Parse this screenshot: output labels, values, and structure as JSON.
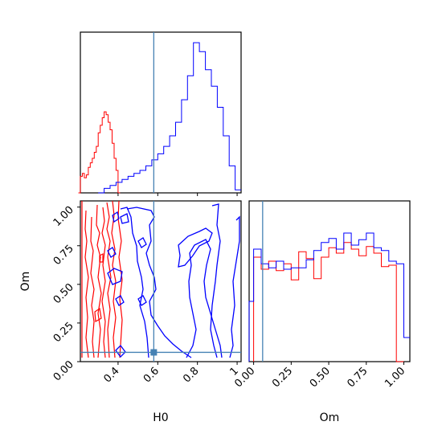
{
  "chart_data": {
    "type": "corner",
    "parameters": [
      "H0",
      "Om"
    ],
    "truth": {
      "H0": 0.58,
      "Om": 0.06
    },
    "colors": {
      "red": "#ff0000",
      "blue": "#0000ff",
      "truth": "#4682b4"
    },
    "panels": [
      {
        "id": "hist-H0",
        "type": "histogram",
        "xlabel": "",
        "xlim": [
          0.21,
          1.02
        ],
        "ylim": [
          0,
          1.07
        ],
        "xticks": [
          0.4,
          0.6,
          0.8,
          1.0
        ],
        "series": [
          {
            "color": "#ff0000",
            "bin_edges": [
              0.2,
              0.21,
              0.22,
              0.23,
              0.24,
              0.25,
              0.26,
              0.27,
              0.28,
              0.29,
              0.3,
              0.31,
              0.32,
              0.33,
              0.34,
              0.35,
              0.36,
              0.37,
              0.38,
              0.39,
              0.4,
              0.41
            ],
            "values": [
              0.0,
              0.11,
              0.13,
              0.1,
              0.12,
              0.17,
              0.2,
              0.23,
              0.27,
              0.31,
              0.4,
              0.45,
              0.5,
              0.54,
              0.52,
              0.47,
              0.42,
              0.33,
              0.23,
              0.15,
              0.0
            ]
          },
          {
            "color": "#0000ff",
            "bin_edges": [
              0.3,
              0.33,
              0.36,
              0.39,
              0.42,
              0.45,
              0.48,
              0.51,
              0.54,
              0.57,
              0.6,
              0.63,
              0.66,
              0.69,
              0.72,
              0.75,
              0.78,
              0.81,
              0.84,
              0.87,
              0.9,
              0.93,
              0.96,
              0.99,
              1.02
            ],
            "values": [
              0.0,
              0.03,
              0.05,
              0.07,
              0.09,
              0.11,
              0.13,
              0.15,
              0.18,
              0.22,
              0.26,
              0.31,
              0.38,
              0.47,
              0.62,
              0.78,
              1.0,
              0.94,
              0.82,
              0.71,
              0.57,
              0.38,
              0.18,
              0.02
            ]
          }
        ]
      },
      {
        "id": "contour-H0-Om",
        "type": "contour",
        "xlabel": "H0",
        "ylabel": "Om",
        "xlim": [
          0.21,
          1.02
        ],
        "ylim": [
          0.0,
          1.04
        ],
        "xticks": [
          0.4,
          0.6,
          0.8,
          1.0
        ],
        "yticks": [
          0.0,
          0.25,
          0.5,
          0.75,
          1.0
        ],
        "yticklabels": [
          "0.00",
          "0.25",
          "0.50",
          "0.75",
          "1.00"
        ]
      },
      {
        "id": "hist-Om",
        "type": "histogram",
        "xlabel": "Om",
        "xlim": [
          -0.03,
          1.04
        ],
        "ylim": [
          0,
          1.2
        ],
        "xticks": [
          0.0,
          0.25,
          0.5,
          0.75,
          1.0
        ],
        "xticklabels": [
          "0.00",
          "0.25",
          "0.50",
          "0.75",
          "1.00"
        ],
        "series": [
          {
            "color": "#ff0000",
            "bin_edges": [
              0.0,
              0.05,
              0.1,
              0.15,
              0.2,
              0.25,
              0.3,
              0.35,
              0.4,
              0.45,
              0.5,
              0.55,
              0.6,
              0.65,
              0.7,
              0.75,
              0.8,
              0.85,
              0.9,
              0.95,
              1.0
            ],
            "values": [
              0.78,
              0.69,
              0.75,
              0.68,
              0.73,
              0.61,
              0.82,
              0.77,
              0.62,
              0.78,
              0.85,
              0.81,
              0.89,
              0.84,
              0.79,
              0.86,
              0.81,
              0.71,
              0.72,
              0.0
            ]
          },
          {
            "color": "#0000ff",
            "bin_edges": [
              -0.03,
              0.0,
              0.05,
              0.1,
              0.15,
              0.2,
              0.25,
              0.3,
              0.35,
              0.4,
              0.45,
              0.5,
              0.55,
              0.6,
              0.65,
              0.7,
              0.75,
              0.8,
              0.85,
              0.9,
              0.95,
              1.0,
              1.04
            ],
            "values": [
              0.45,
              0.84,
              0.73,
              0.7,
              0.75,
              0.69,
              0.7,
              0.7,
              0.76,
              0.83,
              0.89,
              0.92,
              0.84,
              0.96,
              0.87,
              0.91,
              0.96,
              0.85,
              0.83,
              0.75,
              0.73,
              0.18
            ]
          }
        ]
      }
    ]
  }
}
